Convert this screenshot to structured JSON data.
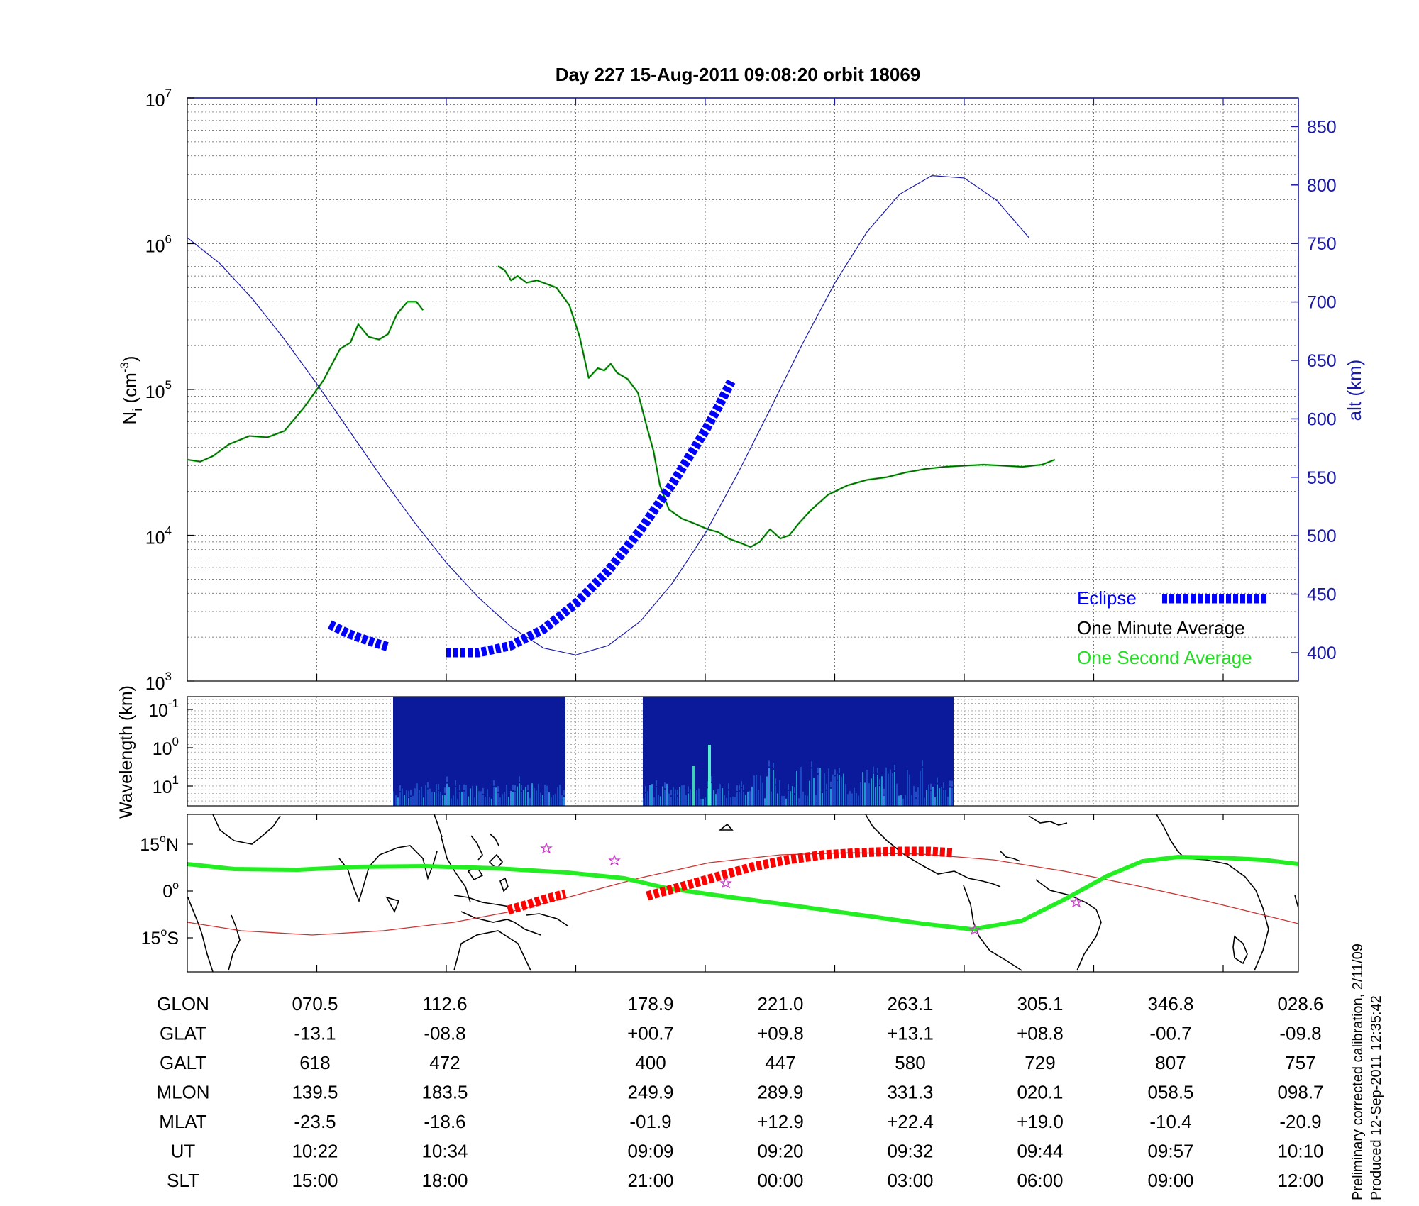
{
  "title": "Day 227  15-Aug-2011 09:08:20   orbit 18069",
  "ylabel_left_main": "N",
  "ylabel_left_sub": "i",
  "ylabel_left_unit": " (cm",
  "ylabel_left_exp": "-3",
  "ylabel_left_close": ")",
  "ylabel_right": "alt (km)",
  "ylabel_spectrum": "Wavelength (km)",
  "side_note_1": "Preliminary corrected calibration, 2/11/09",
  "side_note_2": "Produced 12-Sep-2011 12:35:42",
  "colors": {
    "altitude": "#1a1aa8",
    "eclipse": "#0000ff",
    "one_minute": "#1a4d1a",
    "one_second": "#22dd22",
    "ground_track": "#22ee22",
    "magnetic_equator": "#cc3333",
    "eclipse_track": "#ff0000",
    "spectrum_bg": "#0a1a9a"
  },
  "chart_data": [
    {
      "type": "line",
      "x_unit": "UT",
      "x_ticks": [
        "09:09",
        "09:20",
        "09:32",
        "09:44",
        "09:57",
        "10:10",
        "10:22",
        "10:34"
      ],
      "y_left": {
        "scale": "log",
        "ylim": [
          1000,
          10000000
        ],
        "ticks": [
          {
            "base": "10",
            "exp": "3",
            "value": 1000
          },
          {
            "base": "10",
            "exp": "4",
            "value": 10000
          },
          {
            "base": "10",
            "exp": "5",
            "value": 100000
          },
          {
            "base": "10",
            "exp": "6",
            "value": 1000000
          },
          {
            "base": "10",
            "exp": "7",
            "value": 10000000
          }
        ]
      },
      "y_right": {
        "scale": "linear",
        "ylim": [
          375,
          875
        ],
        "ticks": [
          "400",
          "450",
          "500",
          "550",
          "600",
          "650",
          "700",
          "750",
          "800",
          "850"
        ]
      },
      "grid": true,
      "legend": {
        "placement": "bottom-right",
        "entries": [
          "Eclipse",
          "One Minute Average",
          "One Second Average"
        ]
      },
      "series": [
        {
          "name": "One Minute Average",
          "axis": "left",
          "segments": [
            [
              [
                0,
                33000
              ],
              [
                0.1,
                32000
              ],
              [
                0.2,
                35000
              ],
              [
                0.32,
                42000
              ],
              [
                0.48,
                48000
              ],
              [
                0.62,
                47000
              ],
              [
                0.75,
                52000
              ],
              [
                0.9,
                75000
              ],
              [
                1.05,
                115000
              ],
              [
                1.18,
                190000
              ],
              [
                1.26,
                210000
              ],
              [
                1.32,
                280000
              ],
              [
                1.4,
                230000
              ],
              [
                1.48,
                220000
              ],
              [
                1.55,
                240000
              ],
              [
                1.62,
                330000
              ],
              [
                1.7,
                400000
              ],
              [
                1.77,
                400000
              ],
              [
                1.82,
                350000
              ]
            ],
            [
              [
                2.4,
                700000
              ],
              [
                2.45,
                660000
              ],
              [
                2.5,
                560000
              ],
              [
                2.55,
                600000
              ],
              [
                2.62,
                540000
              ],
              [
                2.7,
                560000
              ],
              [
                2.85,
                500000
              ],
              [
                2.95,
                380000
              ],
              [
                3.03,
                230000
              ],
              [
                3.1,
                120000
              ],
              [
                3.17,
                140000
              ],
              [
                3.22,
                135000
              ],
              [
                3.27,
                150000
              ],
              [
                3.32,
                130000
              ],
              [
                3.4,
                118000
              ],
              [
                3.48,
                95000
              ],
              [
                3.55,
                55000
              ],
              [
                3.6,
                38000
              ],
              [
                3.65,
                22000
              ],
              [
                3.72,
                15000
              ],
              [
                3.82,
                13000
              ],
              [
                3.92,
                12000
              ],
              [
                4.02,
                11000
              ],
              [
                4.1,
                10500
              ],
              [
                4.18,
                9500
              ],
              [
                4.28,
                8800
              ],
              [
                4.35,
                8300
              ],
              [
                4.42,
                9000
              ],
              [
                4.5,
                11000
              ],
              [
                4.58,
                9500
              ],
              [
                4.65,
                10000
              ],
              [
                4.72,
                12000
              ],
              [
                4.82,
                15000
              ],
              [
                4.95,
                19000
              ],
              [
                5.1,
                22000
              ],
              [
                5.25,
                24000
              ],
              [
                5.4,
                25000
              ],
              [
                5.55,
                27000
              ],
              [
                5.7,
                28500
              ],
              [
                5.85,
                29500
              ],
              [
                6.0,
                30000
              ],
              [
                6.15,
                30500
              ],
              [
                6.3,
                30000
              ],
              [
                6.45,
                29500
              ],
              [
                6.6,
                30500
              ],
              [
                6.7,
                33000
              ]
            ]
          ]
        },
        {
          "name": "Altitude",
          "axis": "right",
          "segments": [
            [
              [
                0,
                755
              ],
              [
                0.25,
                733
              ],
              [
                0.5,
                703
              ],
              [
                0.75,
                668
              ],
              [
                1.0,
                630
              ],
              [
                1.25,
                590
              ],
              [
                1.5,
                550
              ],
              [
                1.75,
                512
              ],
              [
                2.0,
                477
              ],
              [
                2.25,
                447
              ],
              [
                2.5,
                422
              ],
              [
                2.75,
                404
              ],
              [
                3.0,
                398
              ],
              [
                3.25,
                406
              ],
              [
                3.5,
                427
              ],
              [
                3.75,
                460
              ],
              [
                4.0,
                502
              ],
              [
                4.25,
                553
              ],
              [
                4.5,
                608
              ],
              [
                4.75,
                664
              ],
              [
                5.0,
                716
              ],
              [
                5.25,
                760
              ],
              [
                5.5,
                792
              ],
              [
                5.75,
                808
              ],
              [
                6.0,
                806
              ],
              [
                6.25,
                787
              ],
              [
                6.5,
                755
              ]
            ]
          ]
        },
        {
          "name": "Eclipse",
          "axis": "right",
          "segments": [
            [
              [
                1.1,
                424
              ],
              [
                1.25,
                416
              ],
              [
                1.4,
                410
              ],
              [
                1.55,
                405
              ]
            ],
            [
              [
                2.0,
                400
              ],
              [
                2.25,
                400
              ],
              [
                2.5,
                406
              ],
              [
                2.75,
                420
              ],
              [
                3.0,
                442
              ],
              [
                3.25,
                470
              ],
              [
                3.5,
                505
              ],
              [
                3.75,
                545
              ],
              [
                4.0,
                590
              ],
              [
                4.1,
                610
              ],
              [
                4.2,
                632
              ]
            ]
          ]
        }
      ]
    },
    {
      "type": "heatmap",
      "y_scale": "log",
      "y_ticks": [
        {
          "base": "10",
          "exp": "-1"
        },
        {
          "base": "10",
          "exp": "0"
        },
        {
          "base": "10",
          "exp": "1"
        }
      ],
      "data_blocks_ut": [
        [
          "10:42",
          "10:48"
        ],
        [
          "09:08",
          "09:37"
        ]
      ]
    },
    {
      "type": "map",
      "lat_ticks": [
        {
          "value": "15",
          "deg": "o",
          "hemi": "N"
        },
        {
          "value": "0",
          "deg": "o",
          "hemi": ""
        },
        {
          "value": "15",
          "deg": "o",
          "hemi": "S"
        }
      ],
      "ground_track_lonlat": [
        [
          70.5,
          -13.1
        ],
        [
          112.6,
          -8.8
        ],
        [
          150,
          -6
        ],
        [
          178.9,
          0.7
        ],
        [
          221.0,
          9.8
        ],
        [
          263.1,
          13.1
        ],
        [
          305.1,
          8.8
        ],
        [
          346.8,
          -0.7
        ],
        [
          388.6,
          -9.8
        ]
      ],
      "table_rows": [
        {
          "label": "GLON",
          "values": [
            "070.5",
            "112.6",
            "178.9",
            "221.0",
            "263.1",
            "305.1",
            "346.8",
            "028.6"
          ]
        },
        {
          "label": "GLAT",
          "values": [
            "-13.1",
            "-08.8",
            "+00.7",
            "+09.8",
            "+13.1",
            "+08.8",
            "-00.7",
            "-09.8"
          ]
        },
        {
          "label": "GALT",
          "values": [
            "618",
            "472",
            "400",
            "447",
            "580",
            "729",
            "807",
            "757"
          ]
        },
        {
          "label": "MLON",
          "values": [
            "139.5",
            "183.5",
            "249.9",
            "289.9",
            "331.3",
            "020.1",
            "058.5",
            "098.7"
          ]
        },
        {
          "label": "MLAT",
          "values": [
            "-23.5",
            "-18.6",
            "-01.9",
            "+12.9",
            "+22.4",
            "+19.0",
            "-10.4",
            "-20.9"
          ]
        },
        {
          "label": "UT",
          "values": [
            "10:22",
            "10:34",
            "09:09",
            "09:20",
            "09:32",
            "09:44",
            "09:57",
            "10:10"
          ]
        },
        {
          "label": "SLT",
          "values": [
            "15:00",
            "18:00",
            "21:00",
            "00:00",
            "03:00",
            "06:00",
            "09:00",
            "12:00"
          ]
        }
      ]
    }
  ]
}
